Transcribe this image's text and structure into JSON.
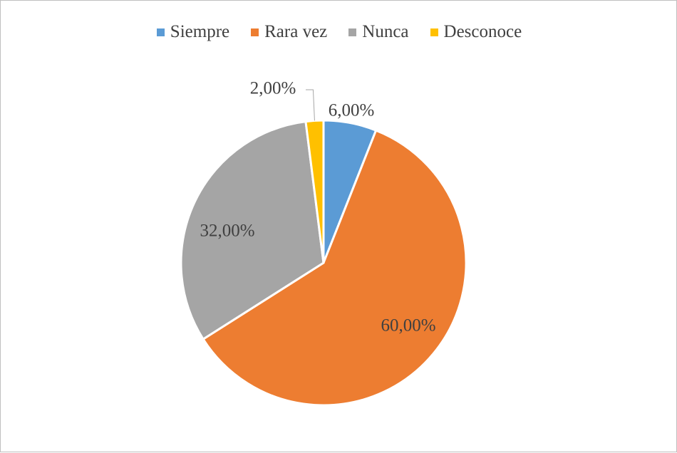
{
  "chart_data": {
    "type": "pie",
    "categories": [
      "Siempre",
      "Rara vez",
      "Nunca",
      "Desconoce"
    ],
    "values": [
      6,
      60,
      32,
      2
    ],
    "data_labels": [
      "6,00%",
      "60,00%",
      "32,00%",
      "2,00%"
    ],
    "colors": [
      "#5b9bd5",
      "#ed7d31",
      "#a5a5a5",
      "#ffc000"
    ],
    "title": "",
    "legend_position": "top",
    "start_angle_deg": 0,
    "direction": "clockwise"
  }
}
